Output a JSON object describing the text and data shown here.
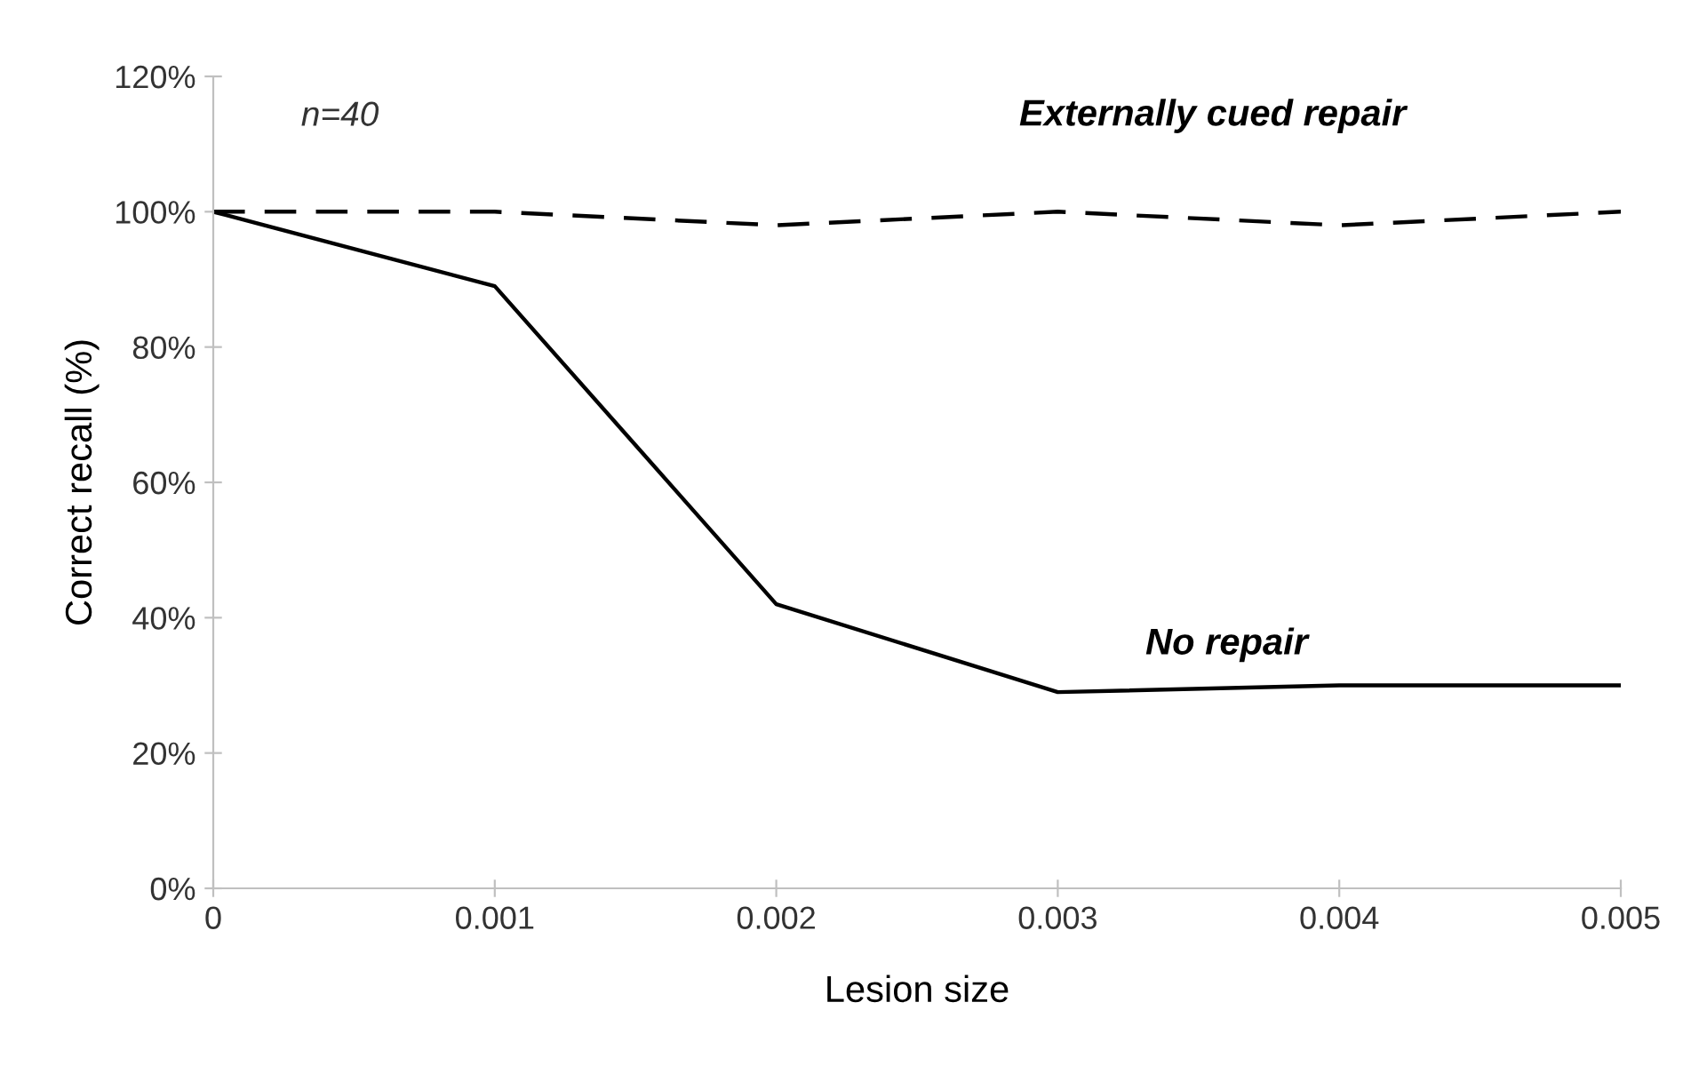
{
  "chart_data": {
    "type": "line",
    "xlabel": "Lesion size",
    "ylabel": "Correct recall (%)",
    "annotations": [
      "n=40"
    ],
    "x": [
      0,
      0.001,
      0.002,
      0.003,
      0.004,
      0.005
    ],
    "series": [
      {
        "name": "Externally cued repair",
        "color": "#000000",
        "line_style": "dashed",
        "values": [
          100,
          100,
          98,
          100,
          98,
          100
        ]
      },
      {
        "name": "No repair",
        "color": "#000000",
        "line_style": "solid",
        "values": [
          100,
          89,
          42,
          29,
          30,
          30
        ]
      }
    ],
    "xlim": [
      0,
      0.005
    ],
    "ylim": [
      0,
      120
    ],
    "xticks": [
      0,
      0.001,
      0.002,
      0.003,
      0.004,
      0.005
    ],
    "yticks": [
      {
        "value": 0,
        "label": "0%"
      },
      {
        "value": 20,
        "label": "20%"
      },
      {
        "value": 40,
        "label": "40%"
      },
      {
        "value": 60,
        "label": "60%"
      },
      {
        "value": 80,
        "label": "80%"
      },
      {
        "value": 100,
        "label": "100%"
      },
      {
        "value": 120,
        "label": "120%"
      }
    ],
    "grid": false,
    "legend": false,
    "marker": "none"
  }
}
